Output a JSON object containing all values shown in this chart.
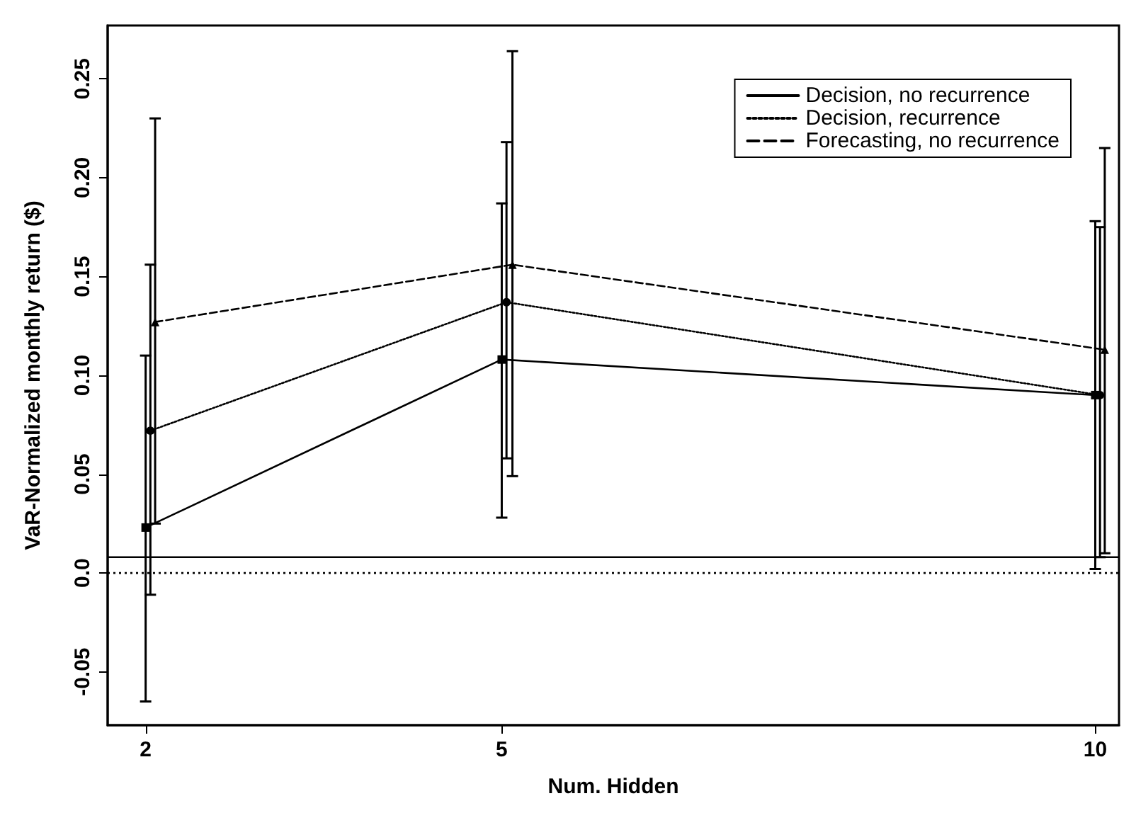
{
  "chart_data": {
    "type": "line",
    "xlabel": "Num. Hidden",
    "ylabel": "VaR-Normalized monthly return ($)",
    "x": [
      2,
      5,
      10
    ],
    "series": [
      {
        "name": "Decision, no recurrence",
        "color": "#000000",
        "line_style": "solid",
        "marker": "square",
        "values": [
          0.023,
          0.108,
          0.09
        ],
        "errors": [
          [
            -0.065,
            0.11
          ],
          [
            0.028,
            0.187
          ],
          [
            0.002,
            0.178
          ]
        ]
      },
      {
        "name": "Decision, recurrence",
        "x": [
          2.04,
          5.04,
          10.04
        ],
        "color": "#000000",
        "line_style": "dotted",
        "marker": "circle",
        "values": [
          0.072,
          0.137,
          0.09
        ],
        "errors": [
          [
            -0.011,
            0.156
          ],
          [
            0.058,
            0.218
          ],
          [
            0.008,
            0.175
          ]
        ]
      },
      {
        "name": "Forecasting, no recurrence",
        "x": [
          2.08,
          5.09,
          10.08
        ],
        "color": "#000000",
        "line_style": "dashed",
        "marker": "triangle",
        "values": [
          0.127,
          0.156,
          0.113
        ],
        "errors": [
          [
            0.025,
            0.23
          ],
          [
            0.049,
            0.264
          ],
          [
            0.01,
            0.215
          ]
        ]
      }
    ],
    "xlim": [
      1.68,
      10.2
    ],
    "xticks": [
      2,
      5,
      10
    ],
    "ylim": [
      -0.077,
      0.277
    ],
    "yticks": [
      {
        "value": -0.05,
        "label": "-0.05"
      },
      {
        "value": 0,
        "label": "0.0"
      },
      {
        "value": 0.05,
        "label": "0.05"
      },
      {
        "value": 0.1,
        "label": "0.10"
      },
      {
        "value": 0.15,
        "label": "0.15"
      },
      {
        "value": 0.2,
        "label": "0.20"
      },
      {
        "value": 0.25,
        "label": "0.25"
      }
    ],
    "ref_lines": [
      {
        "axis": "y",
        "value": 0.008,
        "color": "#000000",
        "line_style": "solid"
      },
      {
        "axis": "y",
        "value": 0,
        "color": "#000000",
        "line_style": "dotted"
      }
    ],
    "grid": false,
    "legend": "top right"
  }
}
